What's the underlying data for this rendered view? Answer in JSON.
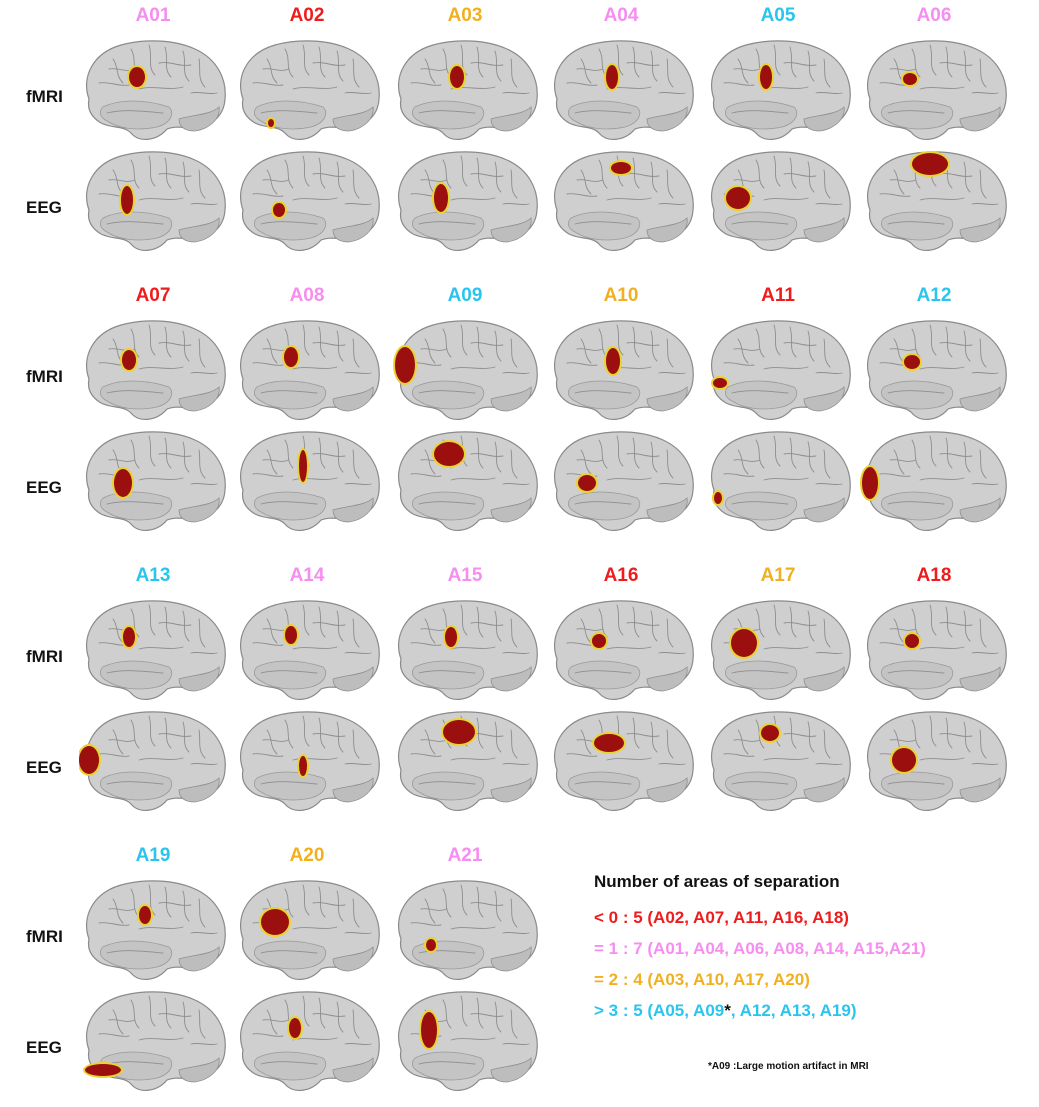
{
  "row_labels": {
    "fmri": "fMRI",
    "eeg": "EEG"
  },
  "colors": {
    "category_lt0": "#ee1c1c",
    "category_eq1": "#f58ef0",
    "category_eq2": "#f0b020",
    "category_gt3": "#29c5ee",
    "activation_core": "#9b0f0f",
    "activation_edge": "#e8d430",
    "brain_fill": "#cfcfcf",
    "brain_outline": "#8a8a8a"
  },
  "subjects": [
    {
      "id": "A01",
      "color": "#f58ef0"
    },
    {
      "id": "A02",
      "color": "#ee1c1c"
    },
    {
      "id": "A03",
      "color": "#f0b020"
    },
    {
      "id": "A04",
      "color": "#f58ef0"
    },
    {
      "id": "A05",
      "color": "#29c5ee"
    },
    {
      "id": "A06",
      "color": "#f58ef0"
    },
    {
      "id": "A07",
      "color": "#ee1c1c"
    },
    {
      "id": "A08",
      "color": "#f58ef0"
    },
    {
      "id": "A09",
      "color": "#29c5ee"
    },
    {
      "id": "A10",
      "color": "#f0b020"
    },
    {
      "id": "A11",
      "color": "#ee1c1c"
    },
    {
      "id": "A12",
      "color": "#29c5ee"
    },
    {
      "id": "A13",
      "color": "#29c5ee"
    },
    {
      "id": "A14",
      "color": "#f58ef0"
    },
    {
      "id": "A15",
      "color": "#f58ef0"
    },
    {
      "id": "A16",
      "color": "#ee1c1c"
    },
    {
      "id": "A17",
      "color": "#f0b020"
    },
    {
      "id": "A18",
      "color": "#ee1c1c"
    },
    {
      "id": "A19",
      "color": "#29c5ee"
    },
    {
      "id": "A20",
      "color": "#f0b020"
    },
    {
      "id": "A21",
      "color": "#f58ef0"
    }
  ],
  "legend": {
    "title": "Number of areas of separation",
    "items": [
      {
        "text": "< 0 : 5 (A02, A07, A11, A16, A18)",
        "color": "#ee1c1c"
      },
      {
        "text": "= 1 : 7 (A01, A04, A06, A08, A14, A15,A21)",
        "color": "#f58ef0"
      },
      {
        "text": "= 2 : 4 (A03, A10, A17, A20)",
        "color": "#f0b020"
      },
      {
        "text_before": "> 3 : 5 (A05, A09",
        "asterisk": "*",
        "text_after": ", A12, A13, A19)",
        "color": "#29c5ee"
      }
    ],
    "note": "*A09 :Large motion artifact in MRI"
  }
}
